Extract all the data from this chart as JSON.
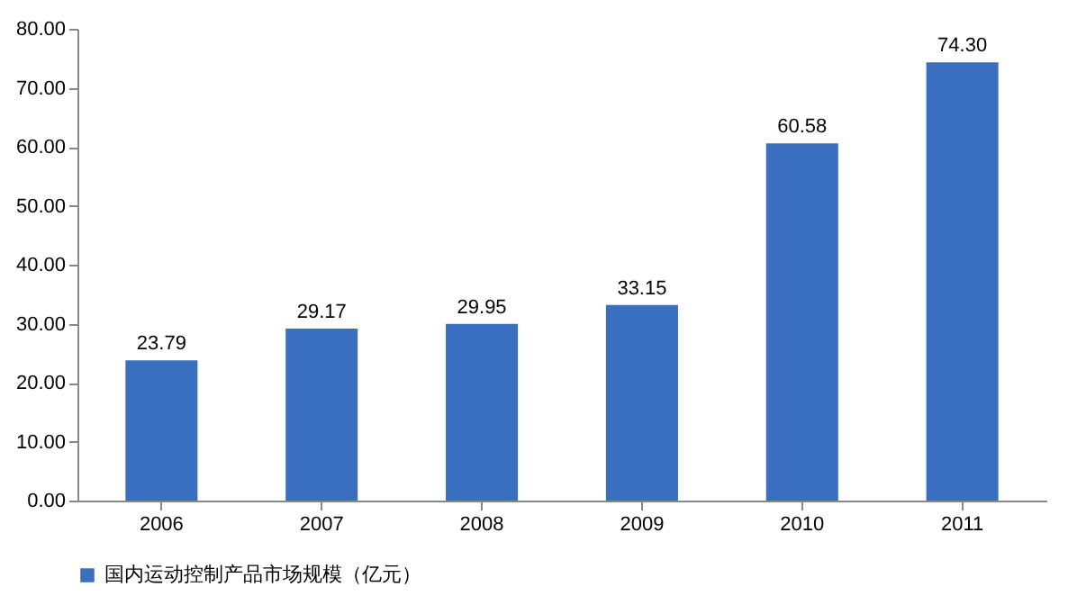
{
  "chart_data": {
    "type": "bar",
    "categories": [
      "2006",
      "2007",
      "2008",
      "2009",
      "2010",
      "2011"
    ],
    "series": [
      {
        "name": "国内运动控制产品市场规模（亿元）",
        "color": "#3a6fc0",
        "values": [
          23.79,
          29.17,
          29.95,
          33.15,
          60.58,
          74.3
        ],
        "value_labels": [
          "23.79",
          "29.17",
          "29.95",
          "33.15",
          "60.58",
          "74.30"
        ]
      }
    ],
    "ylim": [
      0,
      80
    ],
    "yticks": [
      {
        "value": 0,
        "label": "0.00"
      },
      {
        "value": 10,
        "label": "10.00"
      },
      {
        "value": 20,
        "label": "20.00"
      },
      {
        "value": 30,
        "label": "30.00"
      },
      {
        "value": 40,
        "label": "40.00"
      },
      {
        "value": 50,
        "label": "50.00"
      },
      {
        "value": 60,
        "label": "60.00"
      },
      {
        "value": 70,
        "label": "70.00"
      },
      {
        "value": 80,
        "label": "80.00"
      }
    ],
    "grid": false,
    "legend": "bottom"
  }
}
